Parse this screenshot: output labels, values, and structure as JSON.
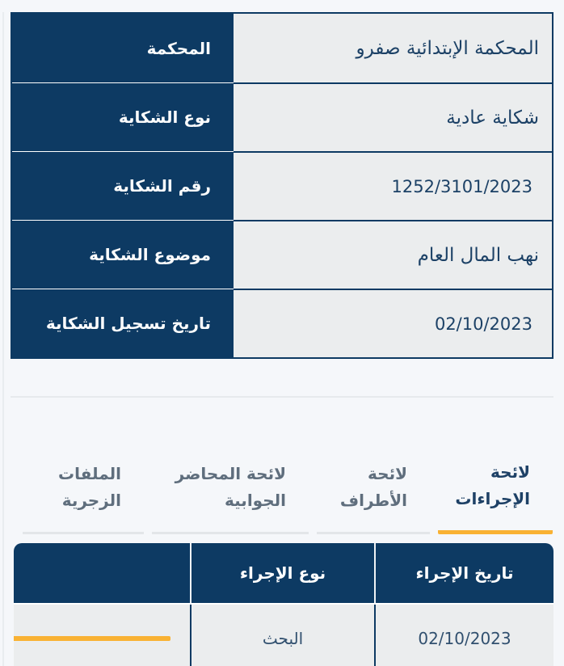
{
  "colors": {
    "navy": "#0d3a63",
    "accent_yellow": "#f9b233",
    "cell_bg": "#ebedee",
    "page_bg": "#f5f7fa"
  },
  "info_table": {
    "rows": [
      {
        "label": "المحكمة",
        "value": "المحكمة الإبتدائية صفرو"
      },
      {
        "label": "نوع الشكاية",
        "value": "شكاية عادية"
      },
      {
        "label": "رقم الشكاية",
        "value": "1252/3101/2023"
      },
      {
        "label": "موضوع الشكاية",
        "value": "نهب المال العام"
      },
      {
        "label": "تاريخ تسجيل الشكاية",
        "value": "02/10/2023"
      }
    ]
  },
  "tabs": [
    {
      "label": "لائحة الإجراءات",
      "active": true
    },
    {
      "label": "لائحة الأطراف",
      "active": false
    },
    {
      "label": "لائحة المحاضر الجوابية",
      "active": false
    },
    {
      "label": "الملفات الزجرية",
      "active": false
    }
  ],
  "procedures_table": {
    "headers": {
      "date": "تاريخ الإجراء",
      "type": "نوع الإجراء",
      "action": ""
    },
    "rows": [
      {
        "date": "02/10/2023",
        "type": "البحث"
      }
    ]
  }
}
